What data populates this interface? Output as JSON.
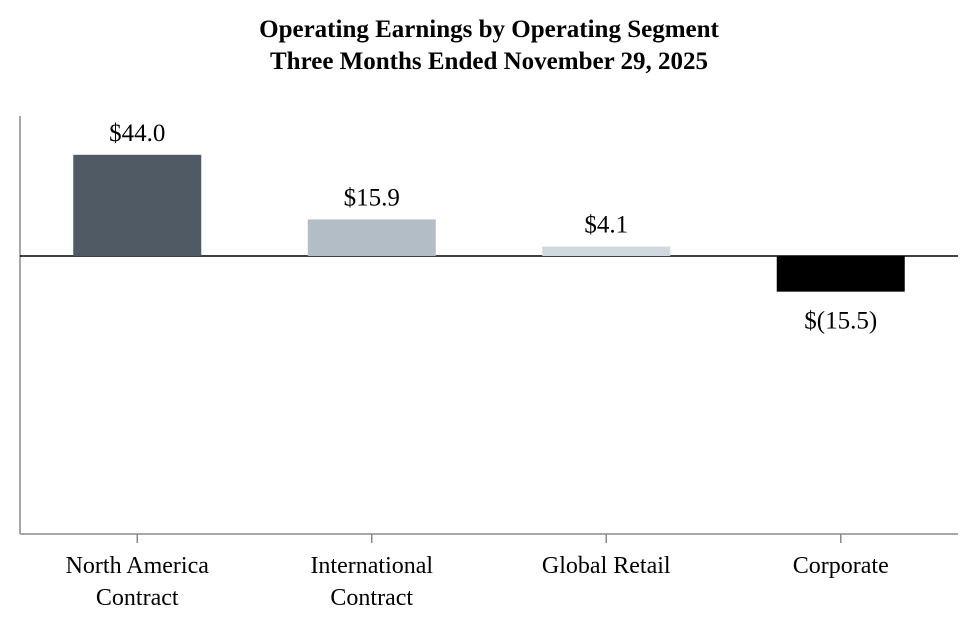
{
  "chart_data": {
    "type": "bar",
    "title": "Operating Earnings by Operating Segment",
    "subtitle": "Three Months Ended November 29, 2025",
    "categories": [
      [
        "North America",
        "Contract"
      ],
      [
        "International",
        "Contract"
      ],
      [
        "Global Retail"
      ],
      [
        "Corporate"
      ]
    ],
    "values": [
      44.0,
      15.9,
      4.1,
      -15.5
    ],
    "data_labels": [
      "$44.0",
      "$15.9",
      "$4.1",
      "$(15.5)"
    ],
    "bar_colors": [
      "#505a64",
      "#b3bdc5",
      "#cfd9de",
      "#000000"
    ],
    "ylim": [
      -120,
      62
    ],
    "zero_line": true,
    "grid": false,
    "legend": "none"
  }
}
